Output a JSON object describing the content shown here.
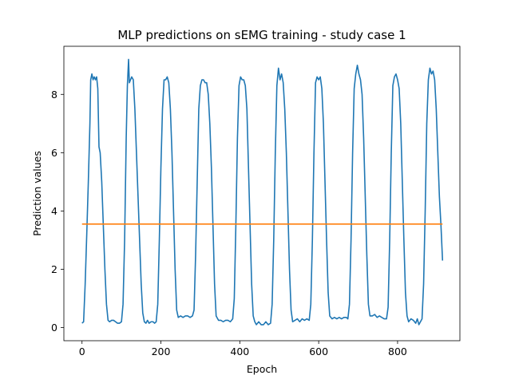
{
  "chart_data": {
    "type": "line",
    "title": "MLP predictions on sEMG training - study case 1",
    "xlabel": "Epoch",
    "ylabel": "Prediction values",
    "xlim": [
      -46,
      958
    ],
    "ylim": [
      -0.45,
      9.65
    ],
    "xticks": [
      0,
      200,
      400,
      600,
      800
    ],
    "yticks": [
      0,
      2,
      4,
      6,
      8
    ],
    "grid": false,
    "legend": "none",
    "series": [
      {
        "color": "#1f77b4",
        "points": [
          [
            0,
            0.15
          ],
          [
            4,
            0.2
          ],
          [
            8,
            1.5
          ],
          [
            12,
            3.2
          ],
          [
            16,
            5.0
          ],
          [
            20,
            7.0
          ],
          [
            22,
            8.5
          ],
          [
            25,
            8.7
          ],
          [
            28,
            8.5
          ],
          [
            31,
            8.6
          ],
          [
            34,
            8.5
          ],
          [
            37,
            8.6
          ],
          [
            40,
            8.2
          ],
          [
            43,
            6.2
          ],
          [
            46,
            6.0
          ],
          [
            50,
            5.0
          ],
          [
            54,
            3.5
          ],
          [
            58,
            2.0
          ],
          [
            62,
            0.8
          ],
          [
            66,
            0.25
          ],
          [
            70,
            0.2
          ],
          [
            75,
            0.25
          ],
          [
            80,
            0.25
          ],
          [
            85,
            0.2
          ],
          [
            90,
            0.15
          ],
          [
            95,
            0.15
          ],
          [
            100,
            0.2
          ],
          [
            104,
            0.8
          ],
          [
            108,
            3.0
          ],
          [
            112,
            6.5
          ],
          [
            115,
            8.3
          ],
          [
            118,
            9.2
          ],
          [
            120,
            8.4
          ],
          [
            123,
            8.5
          ],
          [
            126,
            8.6
          ],
          [
            130,
            8.5
          ],
          [
            134,
            7.5
          ],
          [
            138,
            6.0
          ],
          [
            142,
            4.5
          ],
          [
            146,
            3.0
          ],
          [
            150,
            1.5
          ],
          [
            154,
            0.5
          ],
          [
            158,
            0.2
          ],
          [
            162,
            0.15
          ],
          [
            166,
            0.25
          ],
          [
            170,
            0.15
          ],
          [
            175,
            0.2
          ],
          [
            180,
            0.2
          ],
          [
            184,
            0.15
          ],
          [
            188,
            0.2
          ],
          [
            192,
            0.8
          ],
          [
            196,
            3.0
          ],
          [
            200,
            5.5
          ],
          [
            204,
            7.5
          ],
          [
            208,
            8.5
          ],
          [
            212,
            8.5
          ],
          [
            216,
            8.6
          ],
          [
            220,
            8.4
          ],
          [
            224,
            7.5
          ],
          [
            228,
            6.0
          ],
          [
            232,
            4.0
          ],
          [
            236,
            2.0
          ],
          [
            240,
            0.6
          ],
          [
            244,
            0.35
          ],
          [
            250,
            0.4
          ],
          [
            256,
            0.35
          ],
          [
            262,
            0.4
          ],
          [
            268,
            0.4
          ],
          [
            274,
            0.35
          ],
          [
            280,
            0.4
          ],
          [
            284,
            0.6
          ],
          [
            288,
            2.5
          ],
          [
            292,
            5.0
          ],
          [
            296,
            7.5
          ],
          [
            300,
            8.3
          ],
          [
            304,
            8.5
          ],
          [
            308,
            8.5
          ],
          [
            312,
            8.4
          ],
          [
            316,
            8.4
          ],
          [
            320,
            8.0
          ],
          [
            324,
            7.0
          ],
          [
            328,
            5.5
          ],
          [
            332,
            3.5
          ],
          [
            336,
            1.5
          ],
          [
            340,
            0.4
          ],
          [
            346,
            0.25
          ],
          [
            352,
            0.25
          ],
          [
            358,
            0.2
          ],
          [
            364,
            0.25
          ],
          [
            370,
            0.25
          ],
          [
            376,
            0.2
          ],
          [
            382,
            0.3
          ],
          [
            386,
            1.0
          ],
          [
            390,
            3.5
          ],
          [
            394,
            6.5
          ],
          [
            398,
            8.3
          ],
          [
            402,
            8.6
          ],
          [
            406,
            8.5
          ],
          [
            410,
            8.5
          ],
          [
            414,
            8.3
          ],
          [
            418,
            7.5
          ],
          [
            422,
            5.5
          ],
          [
            426,
            3.5
          ],
          [
            430,
            1.5
          ],
          [
            434,
            0.4
          ],
          [
            438,
            0.2
          ],
          [
            442,
            0.1
          ],
          [
            448,
            0.2
          ],
          [
            454,
            0.1
          ],
          [
            460,
            0.1
          ],
          [
            466,
            0.2
          ],
          [
            472,
            0.1
          ],
          [
            478,
            0.15
          ],
          [
            482,
            0.8
          ],
          [
            486,
            3.0
          ],
          [
            490,
            6.0
          ],
          [
            494,
            8.3
          ],
          [
            498,
            8.9
          ],
          [
            502,
            8.5
          ],
          [
            506,
            8.7
          ],
          [
            510,
            8.4
          ],
          [
            514,
            7.5
          ],
          [
            518,
            6.0
          ],
          [
            522,
            4.0
          ],
          [
            526,
            2.0
          ],
          [
            530,
            0.6
          ],
          [
            534,
            0.2
          ],
          [
            540,
            0.25
          ],
          [
            546,
            0.3
          ],
          [
            552,
            0.2
          ],
          [
            558,
            0.3
          ],
          [
            564,
            0.25
          ],
          [
            570,
            0.3
          ],
          [
            576,
            0.25
          ],
          [
            580,
            0.8
          ],
          [
            584,
            3.0
          ],
          [
            588,
            6.0
          ],
          [
            592,
            8.4
          ],
          [
            596,
            8.6
          ],
          [
            600,
            8.5
          ],
          [
            604,
            8.6
          ],
          [
            608,
            8.2
          ],
          [
            612,
            7.0
          ],
          [
            616,
            5.0
          ],
          [
            620,
            3.0
          ],
          [
            624,
            1.2
          ],
          [
            628,
            0.4
          ],
          [
            634,
            0.3
          ],
          [
            640,
            0.35
          ],
          [
            646,
            0.3
          ],
          [
            652,
            0.35
          ],
          [
            658,
            0.3
          ],
          [
            664,
            0.35
          ],
          [
            670,
            0.35
          ],
          [
            674,
            0.3
          ],
          [
            678,
            0.8
          ],
          [
            682,
            3.0
          ],
          [
            686,
            6.0
          ],
          [
            690,
            8.2
          ],
          [
            694,
            8.7
          ],
          [
            698,
            9.0
          ],
          [
            702,
            8.7
          ],
          [
            706,
            8.5
          ],
          [
            710,
            8.0
          ],
          [
            714,
            6.5
          ],
          [
            718,
            4.5
          ],
          [
            722,
            2.5
          ],
          [
            726,
            0.8
          ],
          [
            730,
            0.4
          ],
          [
            736,
            0.4
          ],
          [
            742,
            0.45
          ],
          [
            748,
            0.35
          ],
          [
            754,
            0.4
          ],
          [
            760,
            0.35
          ],
          [
            766,
            0.3
          ],
          [
            772,
            0.3
          ],
          [
            776,
            0.7
          ],
          [
            780,
            3.0
          ],
          [
            784,
            6.0
          ],
          [
            788,
            8.3
          ],
          [
            792,
            8.6
          ],
          [
            796,
            8.7
          ],
          [
            800,
            8.5
          ],
          [
            804,
            8.2
          ],
          [
            808,
            7.0
          ],
          [
            812,
            5.0
          ],
          [
            816,
            3.0
          ],
          [
            820,
            1.2
          ],
          [
            824,
            0.4
          ],
          [
            828,
            0.2
          ],
          [
            834,
            0.3
          ],
          [
            840,
            0.25
          ],
          [
            846,
            0.15
          ],
          [
            850,
            0.3
          ],
          [
            854,
            0.1
          ],
          [
            858,
            0.2
          ],
          [
            862,
            0.3
          ],
          [
            866,
            1.5
          ],
          [
            870,
            4.0
          ],
          [
            874,
            7.0
          ],
          [
            878,
            8.5
          ],
          [
            882,
            8.9
          ],
          [
            886,
            8.7
          ],
          [
            890,
            8.8
          ],
          [
            894,
            8.5
          ],
          [
            898,
            7.5
          ],
          [
            902,
            6.0
          ],
          [
            906,
            4.5
          ],
          [
            910,
            3.5
          ],
          [
            914,
            2.3
          ]
        ]
      },
      {
        "color": "#ff7f0e",
        "points": [
          [
            0,
            3.55
          ],
          [
            914,
            3.55
          ]
        ]
      }
    ]
  }
}
